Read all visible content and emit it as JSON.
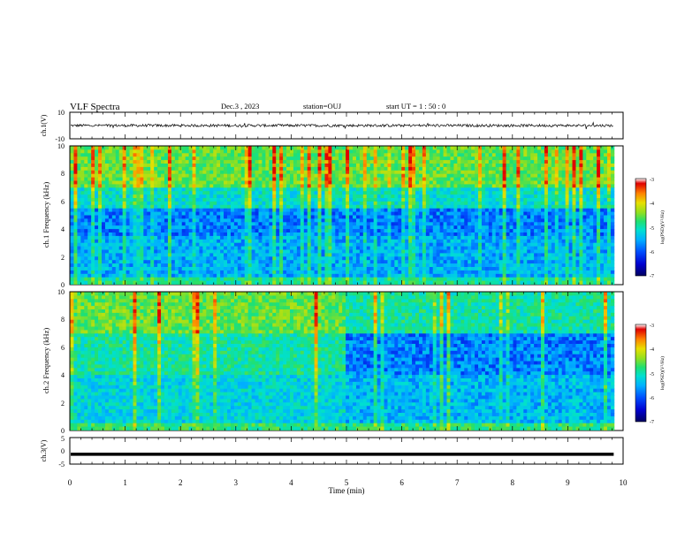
{
  "header": {
    "title": "VLF Spectra",
    "date": "Dec.3 , 2023",
    "station": "station=OUJ",
    "start_time": "start UT = 1 : 50 : 0"
  },
  "colormap": [
    "#000060",
    "#0000d0",
    "#0050ff",
    "#00b0ff",
    "#00e0d0",
    "#20e070",
    "#90e020",
    "#e8e000",
    "#ff8000",
    "#e00000",
    "#ffffff"
  ],
  "chart_data": [
    {
      "type": "line",
      "ylabel": "ch.1(V)",
      "ylim": [
        -10,
        10
      ],
      "yticks": [
        "10",
        "-10"
      ],
      "series": [
        {
          "mean": 0,
          "noise_amplitude": 1.0
        }
      ]
    },
    {
      "type": "heatmap",
      "ylabel": "ch.1 Frequency (kHz)",
      "ylim": [
        0,
        10
      ],
      "yticks": [
        "0",
        "2",
        "4",
        "6",
        "8",
        "10"
      ],
      "colorbar": {
        "label": "log(PSD)(V²/Hz)",
        "min": -7,
        "max": -3,
        "ticks": [
          "-3",
          "-4",
          "-5",
          "-6",
          "-7"
        ]
      }
    },
    {
      "type": "heatmap",
      "ylabel": "ch.2 Frequency (kHz)",
      "ylim": [
        0,
        10
      ],
      "yticks": [
        "0",
        "2",
        "4",
        "6",
        "8",
        "10"
      ],
      "colorbar": {
        "label": "log(PSD)(V²/Hz)",
        "min": -7,
        "max": -3,
        "ticks": [
          "-3",
          "-4",
          "-5",
          "-6",
          "-7"
        ]
      }
    },
    {
      "type": "line",
      "ylabel": "ch.3(V)",
      "ylim": [
        -5,
        5
      ],
      "yticks": [
        "5",
        "0",
        "-5"
      ],
      "series": [
        {
          "mean": -1.3
        }
      ]
    },
    {
      "type": "axis",
      "xlabel": "Time (min)",
      "xlim": [
        0,
        10
      ],
      "data_end": 9.83,
      "xticks": [
        "0",
        "1",
        "2",
        "3",
        "4",
        "5",
        "6",
        "7",
        "8",
        "9",
        "10"
      ]
    }
  ]
}
